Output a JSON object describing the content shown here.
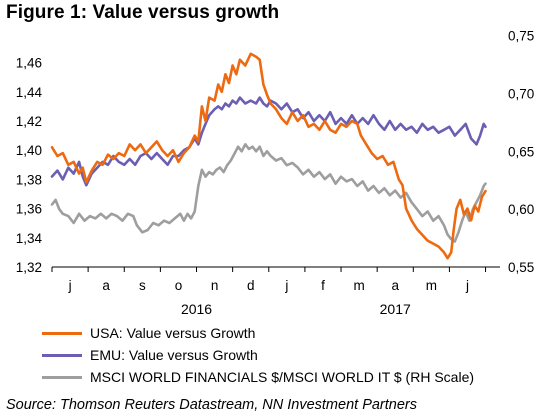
{
  "title": "Figure 1: Value versus growth",
  "source": "Source: Thomson Reuters Datastream, NN Investment Partners",
  "colors": {
    "usa": "#ee6a10",
    "emu": "#6a5fb3",
    "msci": "#9e9e9e"
  },
  "chart_data": {
    "type": "line",
    "title": "Figure 1: Value versus growth",
    "x_months": [
      "j",
      "a",
      "s",
      "o",
      "n",
      "d",
      "j",
      "f",
      "m",
      "a",
      "m",
      "j"
    ],
    "x_years": [
      "2016",
      "2017"
    ],
    "left_axis": {
      "ylim": [
        1.32,
        1.47
      ],
      "ticks": [
        "1,32",
        "1,34",
        "1,36",
        "1,38",
        "1,40",
        "1,42",
        "1,44",
        "1,46"
      ]
    },
    "right_axis": {
      "ylim": [
        0.55,
        0.76
      ],
      "ticks": [
        "0,55",
        "0,60",
        "0,65",
        "0,70",
        "0,75"
      ],
      "label": "(RH Scale)"
    },
    "x_range_months": [
      0,
      12.4
    ],
    "series": [
      {
        "name": "USA: Value versus Growth",
        "axis": "left",
        "color": "#ee6a10",
        "points": [
          [
            0.0,
            1.402
          ],
          [
            0.15,
            1.396
          ],
          [
            0.3,
            1.398
          ],
          [
            0.45,
            1.39
          ],
          [
            0.6,
            1.392
          ],
          [
            0.75,
            1.384
          ],
          [
            0.85,
            1.388
          ],
          [
            0.95,
            1.378
          ],
          [
            1.1,
            1.386
          ],
          [
            1.25,
            1.392
          ],
          [
            1.4,
            1.39
          ],
          [
            1.55,
            1.397
          ],
          [
            1.7,
            1.394
          ],
          [
            1.85,
            1.398
          ],
          [
            2.0,
            1.396
          ],
          [
            2.15,
            1.404
          ],
          [
            2.3,
            1.4
          ],
          [
            2.45,
            1.404
          ],
          [
            2.6,
            1.398
          ],
          [
            2.75,
            1.402
          ],
          [
            2.9,
            1.406
          ],
          [
            3.05,
            1.4
          ],
          [
            3.2,
            1.396
          ],
          [
            3.35,
            1.4
          ],
          [
            3.5,
            1.392
          ],
          [
            3.65,
            1.398
          ],
          [
            3.8,
            1.402
          ],
          [
            3.95,
            1.41
          ],
          [
            4.05,
            1.406
          ],
          [
            4.15,
            1.43
          ],
          [
            4.25,
            1.42
          ],
          [
            4.35,
            1.436
          ],
          [
            4.5,
            1.434
          ],
          [
            4.6,
            1.445
          ],
          [
            4.7,
            1.44
          ],
          [
            4.8,
            1.452
          ],
          [
            4.9,
            1.446
          ],
          [
            5.0,
            1.458
          ],
          [
            5.1,
            1.452
          ],
          [
            5.2,
            1.462
          ],
          [
            5.35,
            1.458
          ],
          [
            5.5,
            1.466
          ],
          [
            5.65,
            1.464
          ],
          [
            5.75,
            1.462
          ],
          [
            5.85,
            1.445
          ],
          [
            5.95,
            1.438
          ],
          [
            6.05,
            1.432
          ],
          [
            6.2,
            1.428
          ],
          [
            6.35,
            1.422
          ],
          [
            6.5,
            1.418
          ],
          [
            6.65,
            1.426
          ],
          [
            6.8,
            1.42
          ],
          [
            6.95,
            1.424
          ],
          [
            7.1,
            1.416
          ],
          [
            7.25,
            1.418
          ],
          [
            7.4,
            1.414
          ],
          [
            7.55,
            1.42
          ],
          [
            7.7,
            1.414
          ],
          [
            7.85,
            1.412
          ],
          [
            8.0,
            1.418
          ],
          [
            8.15,
            1.416
          ],
          [
            8.3,
            1.42
          ],
          [
            8.45,
            1.418
          ],
          [
            8.55,
            1.41
          ],
          [
            8.7,
            1.404
          ],
          [
            8.85,
            1.398
          ],
          [
            9.0,
            1.394
          ],
          [
            9.15,
            1.396
          ],
          [
            9.3,
            1.39
          ],
          [
            9.45,
            1.392
          ],
          [
            9.6,
            1.38
          ],
          [
            9.7,
            1.376
          ],
          [
            9.8,
            1.36
          ],
          [
            9.95,
            1.352
          ],
          [
            10.1,
            1.346
          ],
          [
            10.25,
            1.342
          ],
          [
            10.4,
            1.338
          ],
          [
            10.55,
            1.336
          ],
          [
            10.7,
            1.334
          ],
          [
            10.85,
            1.33
          ],
          [
            10.95,
            1.326
          ],
          [
            11.05,
            1.33
          ],
          [
            11.12,
            1.346
          ],
          [
            11.2,
            1.36
          ],
          [
            11.3,
            1.366
          ],
          [
            11.4,
            1.356
          ],
          [
            11.5,
            1.36
          ],
          [
            11.6,
            1.352
          ],
          [
            11.7,
            1.362
          ],
          [
            11.8,
            1.358
          ],
          [
            11.9,
            1.368
          ],
          [
            12.0,
            1.372
          ]
        ]
      },
      {
        "name": "EMU: Value versus Growth",
        "axis": "left",
        "color": "#6a5fb3",
        "points": [
          [
            0.0,
            1.382
          ],
          [
            0.15,
            1.386
          ],
          [
            0.3,
            1.38
          ],
          [
            0.45,
            1.388
          ],
          [
            0.6,
            1.384
          ],
          [
            0.75,
            1.392
          ],
          [
            0.85,
            1.382
          ],
          [
            0.95,
            1.376
          ],
          [
            1.1,
            1.384
          ],
          [
            1.25,
            1.388
          ],
          [
            1.4,
            1.392
          ],
          [
            1.55,
            1.39
          ],
          [
            1.7,
            1.396
          ],
          [
            1.85,
            1.392
          ],
          [
            2.0,
            1.39
          ],
          [
            2.15,
            1.394
          ],
          [
            2.3,
            1.39
          ],
          [
            2.45,
            1.396
          ],
          [
            2.6,
            1.398
          ],
          [
            2.75,
            1.394
          ],
          [
            2.9,
            1.398
          ],
          [
            3.05,
            1.394
          ],
          [
            3.2,
            1.39
          ],
          [
            3.35,
            1.396
          ],
          [
            3.5,
            1.396
          ],
          [
            3.65,
            1.4
          ],
          [
            3.8,
            1.402
          ],
          [
            3.95,
            1.408
          ],
          [
            4.05,
            1.404
          ],
          [
            4.15,
            1.412
          ],
          [
            4.25,
            1.418
          ],
          [
            4.35,
            1.424
          ],
          [
            4.5,
            1.428
          ],
          [
            4.6,
            1.43
          ],
          [
            4.7,
            1.428
          ],
          [
            4.8,
            1.432
          ],
          [
            4.9,
            1.43
          ],
          [
            5.0,
            1.434
          ],
          [
            5.1,
            1.432
          ],
          [
            5.2,
            1.436
          ],
          [
            5.35,
            1.432
          ],
          [
            5.5,
            1.434
          ],
          [
            5.65,
            1.432
          ],
          [
            5.75,
            1.436
          ],
          [
            5.85,
            1.432
          ],
          [
            5.95,
            1.43
          ],
          [
            6.05,
            1.434
          ],
          [
            6.2,
            1.432
          ],
          [
            6.35,
            1.428
          ],
          [
            6.5,
            1.432
          ],
          [
            6.65,
            1.426
          ],
          [
            6.8,
            1.428
          ],
          [
            6.95,
            1.422
          ],
          [
            7.1,
            1.426
          ],
          [
            7.25,
            1.42
          ],
          [
            7.4,
            1.424
          ],
          [
            7.55,
            1.42
          ],
          [
            7.7,
            1.426
          ],
          [
            7.85,
            1.418
          ],
          [
            8.0,
            1.422
          ],
          [
            8.15,
            1.418
          ],
          [
            8.3,
            1.424
          ],
          [
            8.45,
            1.418
          ],
          [
            8.6,
            1.422
          ],
          [
            8.75,
            1.418
          ],
          [
            8.9,
            1.424
          ],
          [
            9.05,
            1.418
          ],
          [
            9.2,
            1.414
          ],
          [
            9.35,
            1.42
          ],
          [
            9.5,
            1.414
          ],
          [
            9.65,
            1.418
          ],
          [
            9.8,
            1.414
          ],
          [
            9.95,
            1.416
          ],
          [
            10.1,
            1.412
          ],
          [
            10.25,
            1.418
          ],
          [
            10.4,
            1.414
          ],
          [
            10.55,
            1.416
          ],
          [
            10.7,
            1.412
          ],
          [
            10.85,
            1.414
          ],
          [
            11.0,
            1.416
          ],
          [
            11.15,
            1.41
          ],
          [
            11.3,
            1.414
          ],
          [
            11.45,
            1.418
          ],
          [
            11.6,
            1.408
          ],
          [
            11.75,
            1.404
          ],
          [
            11.85,
            1.41
          ],
          [
            11.95,
            1.418
          ],
          [
            12.0,
            1.416
          ]
        ]
      },
      {
        "name": "MSCI WORLD FINANCIALS $/MSCI WORLD IT $ (RH Scale)",
        "axis": "right",
        "color": "#9e9e9e",
        "points": [
          [
            0.0,
            0.604
          ],
          [
            0.1,
            0.608
          ],
          [
            0.2,
            0.6
          ],
          [
            0.3,
            0.596
          ],
          [
            0.45,
            0.594
          ],
          [
            0.6,
            0.588
          ],
          [
            0.75,
            0.596
          ],
          [
            0.9,
            0.59
          ],
          [
            1.05,
            0.594
          ],
          [
            1.2,
            0.592
          ],
          [
            1.35,
            0.596
          ],
          [
            1.5,
            0.592
          ],
          [
            1.65,
            0.596
          ],
          [
            1.8,
            0.594
          ],
          [
            1.95,
            0.59
          ],
          [
            2.1,
            0.596
          ],
          [
            2.25,
            0.594
          ],
          [
            2.35,
            0.586
          ],
          [
            2.5,
            0.58
          ],
          [
            2.65,
            0.582
          ],
          [
            2.8,
            0.588
          ],
          [
            2.95,
            0.586
          ],
          [
            3.1,
            0.59
          ],
          [
            3.25,
            0.588
          ],
          [
            3.4,
            0.592
          ],
          [
            3.55,
            0.596
          ],
          [
            3.65,
            0.59
          ],
          [
            3.75,
            0.596
          ],
          [
            3.85,
            0.592
          ],
          [
            3.95,
            0.598
          ],
          [
            4.05,
            0.62
          ],
          [
            4.15,
            0.634
          ],
          [
            4.25,
            0.628
          ],
          [
            4.35,
            0.632
          ],
          [
            4.45,
            0.63
          ],
          [
            4.55,
            0.634
          ],
          [
            4.65,
            0.636
          ],
          [
            4.75,
            0.632
          ],
          [
            4.85,
            0.638
          ],
          [
            4.95,
            0.642
          ],
          [
            5.05,
            0.648
          ],
          [
            5.15,
            0.654
          ],
          [
            5.25,
            0.65
          ],
          [
            5.35,
            0.656
          ],
          [
            5.45,
            0.652
          ],
          [
            5.55,
            0.654
          ],
          [
            5.65,
            0.65
          ],
          [
            5.75,
            0.654
          ],
          [
            5.85,
            0.646
          ],
          [
            5.95,
            0.65
          ],
          [
            6.05,
            0.646
          ],
          [
            6.2,
            0.642
          ],
          [
            6.35,
            0.644
          ],
          [
            6.5,
            0.638
          ],
          [
            6.65,
            0.64
          ],
          [
            6.8,
            0.636
          ],
          [
            6.95,
            0.63
          ],
          [
            7.1,
            0.634
          ],
          [
            7.25,
            0.628
          ],
          [
            7.4,
            0.632
          ],
          [
            7.55,
            0.626
          ],
          [
            7.7,
            0.63
          ],
          [
            7.85,
            0.622
          ],
          [
            8.0,
            0.628
          ],
          [
            8.15,
            0.624
          ],
          [
            8.3,
            0.626
          ],
          [
            8.45,
            0.62
          ],
          [
            8.6,
            0.624
          ],
          [
            8.75,
            0.616
          ],
          [
            8.9,
            0.62
          ],
          [
            9.05,
            0.614
          ],
          [
            9.2,
            0.618
          ],
          [
            9.35,
            0.612
          ],
          [
            9.5,
            0.616
          ],
          [
            9.65,
            0.61
          ],
          [
            9.8,
            0.614
          ],
          [
            9.95,
            0.606
          ],
          [
            10.1,
            0.6
          ],
          [
            10.25,
            0.594
          ],
          [
            10.4,
            0.598
          ],
          [
            10.55,
            0.59
          ],
          [
            10.7,
            0.594
          ],
          [
            10.85,
            0.586
          ],
          [
            10.95,
            0.578
          ],
          [
            11.05,
            0.574
          ],
          [
            11.15,
            0.572
          ],
          [
            11.25,
            0.58
          ],
          [
            11.35,
            0.59
          ],
          [
            11.45,
            0.598
          ],
          [
            11.55,
            0.59
          ],
          [
            11.65,
            0.6
          ],
          [
            11.75,
            0.606
          ],
          [
            11.85,
            0.612
          ],
          [
            11.95,
            0.62
          ],
          [
            12.0,
            0.622
          ]
        ]
      }
    ]
  },
  "legend": [
    {
      "label": "USA: Value versus Growth",
      "color": "#ee6a10"
    },
    {
      "label": "EMU: Value versus Growth",
      "color": "#6a5fb3"
    },
    {
      "label": "MSCI WORLD FINANCIALS $/MSCI WORLD IT $ (RH Scale)",
      "color": "#9e9e9e"
    }
  ]
}
